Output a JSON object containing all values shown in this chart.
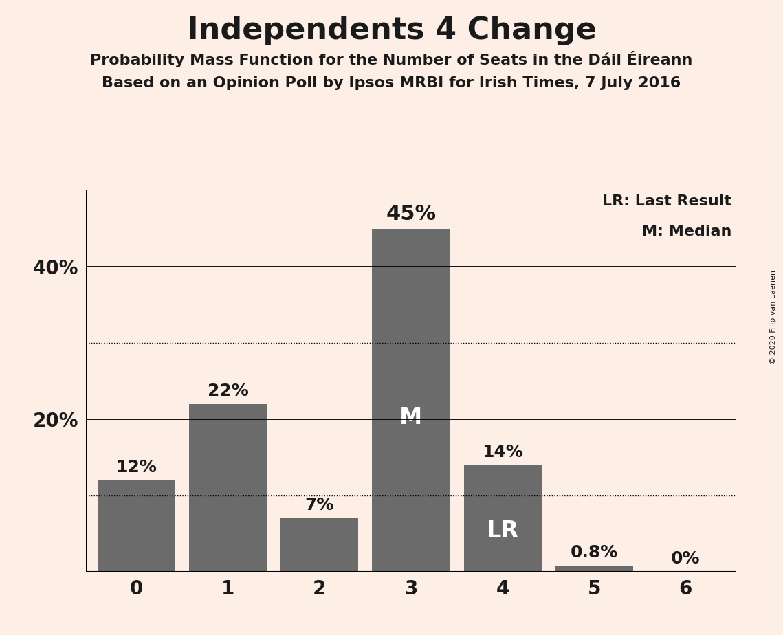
{
  "title": "Independents 4 Change",
  "subtitle1": "Probability Mass Function for the Number of Seats in the Dáil Éireann",
  "subtitle2": "Based on an Opinion Poll by Ipsos MRBI for Irish Times, 7 July 2016",
  "copyright": "© 2020 Filip van Laenen",
  "categories": [
    0,
    1,
    2,
    3,
    4,
    5,
    6
  ],
  "values": [
    12,
    22,
    7,
    45,
    14,
    0.8,
    0
  ],
  "bar_color": "#6b6b6b",
  "background_color": "#fdeee6",
  "text_color": "#1a1a1a",
  "bar_labels": [
    "12%",
    "22%",
    "7%",
    "45%",
    "14%",
    "0.8%",
    "0%"
  ],
  "median_bar": 3,
  "lr_bar": 4,
  "median_label": "M",
  "lr_label": "LR",
  "legend_lr": "LR: Last Result",
  "legend_m": "M: Median",
  "dotted_lines": [
    10,
    30
  ],
  "ylim": [
    0,
    50
  ],
  "solid_lines": [
    20,
    40
  ],
  "ytick_positions": [
    20,
    40
  ],
  "ytick_labels": [
    "20%",
    "40%"
  ]
}
